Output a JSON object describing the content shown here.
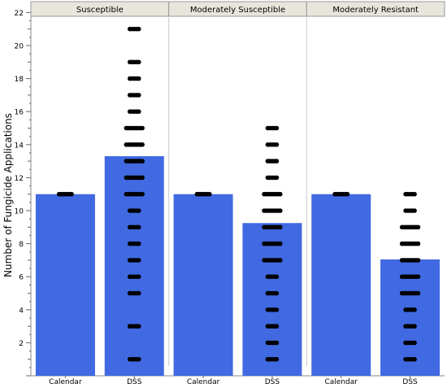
{
  "chart_data": {
    "type": "bar",
    "ylabel": "Number of Fungicide Applications",
    "xlabel": "",
    "ylim": [
      0,
      22
    ],
    "yticks_major": [
      2,
      4,
      6,
      8,
      10,
      12,
      14,
      16,
      18,
      20,
      22
    ],
    "categories": [
      "Calendar",
      "DSS"
    ],
    "colors": {
      "bar": "#4169e1",
      "point": "#000000",
      "panel_header": "#e8e6dc"
    },
    "panels": [
      {
        "title": "Susceptible",
        "bars": [
          {
            "category": "Calendar",
            "value": 11
          },
          {
            "category": "DSS",
            "value": 13.3
          }
        ],
        "points": {
          "Calendar": [
            11
          ],
          "DSS": [
            21,
            19,
            18,
            17,
            16,
            15,
            14,
            13,
            12,
            11,
            10,
            9,
            8,
            7,
            6,
            5,
            3,
            1
          ]
        }
      },
      {
        "title": "Moderately Susceptible",
        "bars": [
          {
            "category": "Calendar",
            "value": 11
          },
          {
            "category": "DSS",
            "value": 9.25
          }
        ],
        "points": {
          "Calendar": [
            11
          ],
          "DSS": [
            15,
            14,
            13,
            12,
            11,
            10,
            9,
            8,
            7,
            6,
            5,
            4,
            3,
            2,
            1
          ]
        }
      },
      {
        "title": "Moderately Resistant",
        "bars": [
          {
            "category": "Calendar",
            "value": 11
          },
          {
            "category": "DSS",
            "value": 7.05
          }
        ],
        "points": {
          "Calendar": [
            11
          ],
          "DSS": [
            11,
            10,
            9,
            8,
            7,
            6,
            5,
            4,
            3,
            2,
            1
          ]
        }
      }
    ]
  }
}
